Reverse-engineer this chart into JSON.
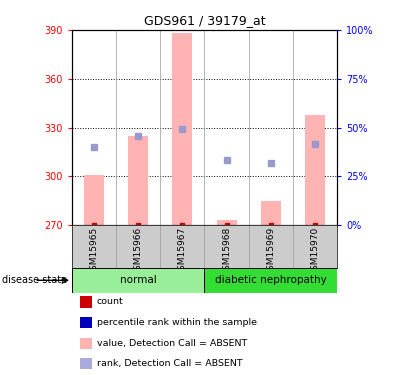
{
  "title": "GDS961 / 39179_at",
  "samples": [
    "GSM15965",
    "GSM15966",
    "GSM15967",
    "GSM15968",
    "GSM15969",
    "GSM15970"
  ],
  "bar_values": [
    301,
    325,
    388,
    273,
    285,
    338
  ],
  "bar_bottom": 270,
  "rank_values": [
    318,
    325,
    329,
    310,
    308,
    320
  ],
  "ylim_left": [
    270,
    390
  ],
  "ylim_right": [
    0,
    100
  ],
  "yticks_left": [
    270,
    300,
    330,
    360,
    390
  ],
  "yticks_right": [
    0,
    25,
    50,
    75,
    100
  ],
  "ytick_labels_right": [
    "0%",
    "25%",
    "50%",
    "75%",
    "100%"
  ],
  "bar_color": "#ffb3b3",
  "rank_color": "#9999cc",
  "count_color": "#cc0000",
  "pct_color": "#0000bb",
  "normal_group_color": "#99ee99",
  "diabetic_group_color": "#33dd33",
  "label_bg_color": "#cccccc",
  "dotted_yticks": [
    300,
    330,
    360
  ],
  "legend_items": [
    {
      "label": "count",
      "color": "#cc0000"
    },
    {
      "label": "percentile rank within the sample",
      "color": "#0000bb"
    },
    {
      "label": "value, Detection Call = ABSENT",
      "color": "#ffb3b3"
    },
    {
      "label": "rank, Detection Call = ABSENT",
      "color": "#aaaadd"
    }
  ]
}
